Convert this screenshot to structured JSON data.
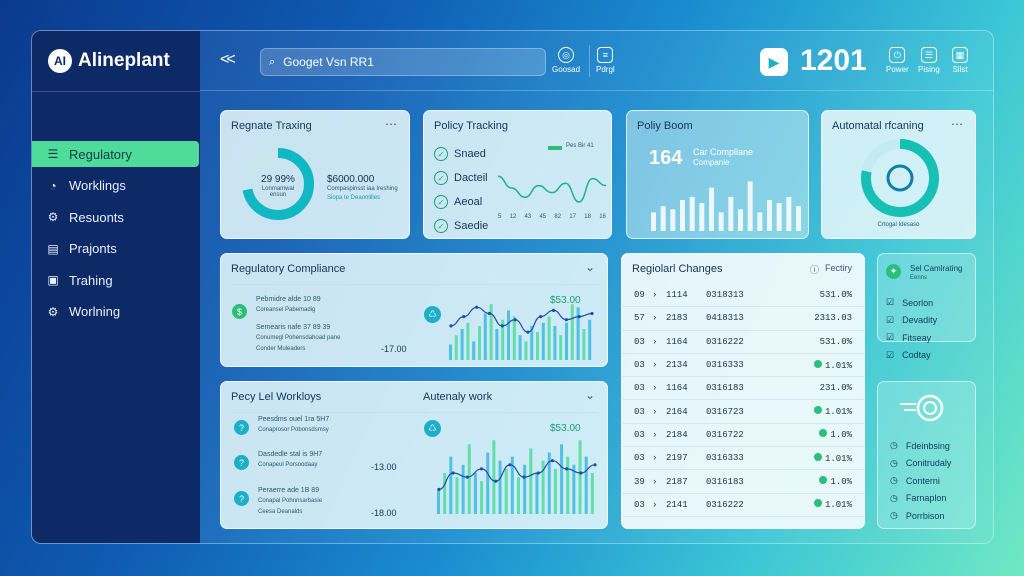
{
  "app": {
    "logo_badge": "AI",
    "logo_text": "Alineplant"
  },
  "sidebar": {
    "items": [
      {
        "label": "Regulatory",
        "icon": "list-icon",
        "active": true
      },
      {
        "label": "Worklings",
        "icon": "clock-icon"
      },
      {
        "label": "Resuonts",
        "icon": "gear-icon"
      },
      {
        "label": "Prajonts",
        "icon": "document-icon"
      },
      {
        "label": "Trahing",
        "icon": "clipboard-icon"
      },
      {
        "label": "Worlning",
        "icon": "settings-icon"
      }
    ]
  },
  "topbar": {
    "back_glyph": "<<",
    "search_value": "Googet Vsn RR1",
    "btn1_label": "Goosad",
    "btn2_label": "Pdrgl",
    "count": "1201",
    "right_btns": [
      "Power",
      "Pising",
      "Sllst"
    ]
  },
  "cards": {
    "reg_tracking": {
      "title": "Regnate Traxing",
      "pct": "29 99%",
      "pct_sub": "Lonmamwal ensun",
      "amount": "$6000.000",
      "amount_sub": "Compaspinsst iaa Ireshing",
      "amount_sub2": "Siopa te Deaoolilles"
    },
    "policy_tracking": {
      "title": "Policy Tracking",
      "legend": "Pes Bir 41",
      "items": [
        "Snaed",
        "Dacteil",
        "Aeoal",
        "Saedie"
      ],
      "axis": [
        "5",
        "12",
        "43",
        "45",
        "82",
        "17",
        "18",
        "16"
      ]
    },
    "policy_boom": {
      "title": "Poliy Boom",
      "value": "164",
      "desc1": "Car Compllane",
      "desc2": "Companie"
    },
    "automated": {
      "title": "Automatal rfcaning",
      "caption": "Crtogal Idesaso"
    },
    "compliance": {
      "title": "Regulatory Compliance",
      "value_right": "$53.00",
      "neg_value": "-17.00",
      "rows": [
        {
          "t1": "Pebmidre alde 10 89",
          "t2": "Coreansel Pabemadig"
        },
        {
          "t1": "Semearis nafe 37 89 39",
          "t2": "Conumegl Pohensdahoad pane"
        },
        {
          "t1": "",
          "t2": "Conder Muleaders"
        }
      ]
    },
    "workflows": {
      "title": "Pecy Lel Workloys",
      "sub_title": "Autenaly work",
      "value_right": "$53.00",
      "rows": [
        {
          "t1": "Peesdms ouel 1ra 5H7",
          "t2": "Conaprosor Pobonsdsmsy",
          "v": ""
        },
        {
          "t1": "Dasdedle stal is 9H7",
          "t2": "Conapeul Porsoodaay",
          "v": "-13.00"
        },
        {
          "t1": "Peraerre ade 1B 89",
          "t2": "Conapal Pohnnsarbasie",
          "t3": "Ceesa Deanalds",
          "v": "-18.00"
        }
      ]
    },
    "changes": {
      "title": "Regiolarl Changes",
      "filter": "Fectiry",
      "rows": [
        {
          "a": "09",
          "b": "1114",
          "c": "0318313",
          "d": "531.0%",
          "g": false
        },
        {
          "a": "57",
          "b": "2183",
          "c": "0418313",
          "d": "2313.03",
          "g": false
        },
        {
          "a": "03",
          "b": "1164",
          "c": "0316222",
          "d": "531.0%",
          "g": false
        },
        {
          "a": "03",
          "b": "2134",
          "c": "0316333",
          "d": "1.01%",
          "g": true
        },
        {
          "a": "03",
          "b": "1164",
          "c": "0316183",
          "d": "231.0%",
          "g": false
        },
        {
          "a": "03",
          "b": "2164",
          "c": "0316723",
          "d": "1.01%",
          "g": true
        },
        {
          "a": "03",
          "b": "2184",
          "c": "0316722",
          "d": "1.0%",
          "g": true
        },
        {
          "a": "03",
          "b": "2197",
          "c": "0316333",
          "d": "1.01%",
          "g": true
        },
        {
          "a": "39",
          "b": "2187",
          "c": "0316183",
          "d": "1.0%",
          "g": true
        },
        {
          "a": "03",
          "b": "2141",
          "c": "0316222",
          "d": "1.01%",
          "g": true
        }
      ]
    }
  },
  "right_panel": {
    "top": {
      "head1": "Sel Camlrating",
      "head2": "Eenns",
      "items": [
        "Seorlon",
        "Devadity",
        "Fitseay",
        "Codtay"
      ]
    },
    "bottom": {
      "items": [
        "Fdeinbsing",
        "Conitrudaly",
        "Conterni",
        "Farnaplon",
        "Porrbison"
      ]
    }
  },
  "charts": {
    "line_policy": [
      0.7,
      0.45,
      0.25,
      0.5,
      0.35,
      0.55,
      0.15,
      0.65,
      0.5
    ],
    "bars_boom": [
      0.3,
      0.4,
      0.35,
      0.5,
      0.55,
      0.45,
      0.7,
      0.3,
      0.55,
      0.35,
      0.8,
      0.3,
      0.5,
      0.45,
      0.55,
      0.4
    ],
    "compliance": {
      "bars": [
        0.25,
        0.4,
        0.5,
        0.6,
        0.3,
        0.55,
        0.75,
        0.9,
        0.5,
        0.65,
        0.8,
        0.7,
        0.4,
        0.3,
        0.55,
        0.45,
        0.6,
        0.7,
        0.55,
        0.4,
        0.6,
        0.9,
        0.85,
        0.5,
        0.65
      ],
      "line": [
        0.55,
        0.7,
        0.85,
        0.75,
        0.55,
        0.65,
        0.45,
        0.7,
        0.8,
        0.65,
        0.7,
        0.75
      ]
    },
    "workflows": {
      "bars": [
        0.3,
        0.5,
        0.7,
        0.45,
        0.6,
        0.85,
        0.5,
        0.4,
        0.75,
        0.9,
        0.65,
        0.55,
        0.7,
        0.45,
        0.6,
        0.8,
        0.5,
        0.65,
        0.75,
        0.55,
        0.85,
        0.7,
        0.6,
        0.9,
        0.7,
        0.5
      ],
      "line": [
        0.3,
        0.5,
        0.45,
        0.55,
        0.4,
        0.6,
        0.45,
        0.5,
        0.65,
        0.55,
        0.5,
        0.6
      ]
    },
    "donut_reg": 0.72,
    "donut_auto": 0.78
  },
  "colors": {
    "accent": "#4fdc9a",
    "teal": "#1cb0c8",
    "dark": "#0d2a66"
  }
}
